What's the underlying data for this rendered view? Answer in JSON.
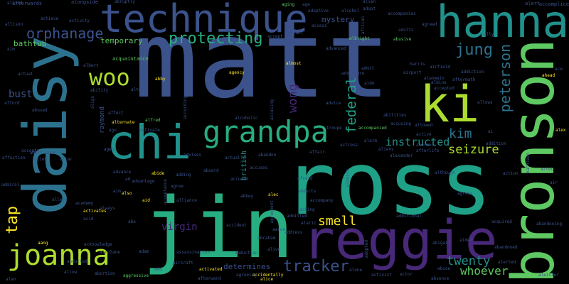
{
  "cloud": {
    "background": "#000000",
    "palette": [
      "#3b528b",
      "#21918c",
      "#5ec962",
      "#fde725",
      "#440154",
      "#2c728e",
      "#27ad81",
      "#482878",
      "#addc30",
      "#1fa188"
    ],
    "words": [
      {
        "text": "matt",
        "color": "#3b528b",
        "orient": "h"
      },
      {
        "text": "ross",
        "color": "#1fa188",
        "orient": "h"
      },
      {
        "text": "daisy",
        "color": "#2c728e",
        "orient": "v"
      },
      {
        "text": "jin",
        "color": "#27ad81",
        "orient": "h"
      },
      {
        "text": "bronson",
        "color": "#5ec962",
        "orient": "v"
      },
      {
        "text": "reggie",
        "color": "#482878",
        "orient": "h"
      },
      {
        "text": "hanna",
        "color": "#21918c",
        "orient": "h"
      },
      {
        "text": "technique",
        "color": "#3b528b",
        "orient": "h"
      },
      {
        "text": "ki",
        "color": "#addc30",
        "orient": "h"
      },
      {
        "text": "chi",
        "color": "#21918c",
        "orient": "h"
      },
      {
        "text": "grandpa",
        "color": "#27ad81",
        "orient": "h"
      },
      {
        "text": "joanna",
        "color": "#addc30",
        "orient": "h"
      },
      {
        "text": "protecting",
        "color": "#27ad81",
        "orient": "h"
      },
      {
        "text": "woo",
        "color": "#addc30",
        "orient": "h"
      },
      {
        "text": "orphanage",
        "color": "#3b528b",
        "orient": "h"
      },
      {
        "text": "jung",
        "color": "#2c728e",
        "orient": "h"
      },
      {
        "text": "peterson",
        "color": "#2c728e",
        "orient": "v"
      },
      {
        "text": "federal",
        "color": "#1fa188",
        "orient": "v"
      },
      {
        "text": "wong",
        "color": "#482878",
        "orient": "v"
      },
      {
        "text": "kim",
        "color": "#2c728e",
        "orient": "h"
      },
      {
        "text": "seizure",
        "color": "#addc30",
        "orient": "h"
      },
      {
        "text": "instructed",
        "color": "#21918c",
        "orient": "h"
      },
      {
        "text": "twenty",
        "color": "#21918c",
        "orient": "h"
      },
      {
        "text": "whoever",
        "color": "#5ec962",
        "orient": "h"
      },
      {
        "text": "tracker",
        "color": "#3b528b",
        "orient": "h"
      },
      {
        "text": "smell",
        "color": "#fde725",
        "orient": "h"
      },
      {
        "text": "virgin",
        "color": "#482878",
        "orient": "h"
      },
      {
        "text": "tap",
        "color": "#fde725",
        "orient": "v"
      },
      {
        "text": "bust",
        "color": "#3b528b",
        "orient": "h"
      },
      {
        "text": "bathtub",
        "color": "#5ec962",
        "orient": "h"
      },
      {
        "text": "mystery",
        "color": "#3b528b",
        "orient": "h"
      },
      {
        "text": "temporary",
        "color": "#5ec962",
        "orient": "h"
      },
      {
        "text": "determines",
        "color": "#3b528b",
        "orient": "h"
      },
      {
        "text": "british",
        "color": "#21918c",
        "orient": "v"
      },
      {
        "text": "raymond",
        "color": "#3b528b",
        "orient": "v"
      },
      {
        "text": "acquaintance",
        "color": "#5ec962",
        "orient": "h"
      },
      {
        "text": "afterwards",
        "color": "#3b528b",
        "orient": "h"
      },
      {
        "text": "alongside",
        "color": "#3b528b",
        "orient": "h"
      },
      {
        "text": "abruptly",
        "color": "#3b528b",
        "orient": "h"
      },
      {
        "text": "aging",
        "color": "#5ec962",
        "orient": "h"
      },
      {
        "text": "alert",
        "color": "#3b528b",
        "orient": "h"
      },
      {
        "text": "accomplice",
        "color": "#3b528b",
        "orient": "h"
      },
      {
        "text": "adoptive",
        "color": "#3b528b",
        "orient": "h"
      },
      {
        "text": "alcohol",
        "color": "#3b528b",
        "orient": "h"
      },
      {
        "text": "accompanies",
        "color": "#3b528b",
        "orient": "h"
      },
      {
        "text": "agreed",
        "color": "#3b528b",
        "orient": "h"
      },
      {
        "text": "ally",
        "color": "#3b528b",
        "orient": "h"
      },
      {
        "text": "allison",
        "color": "#3b528b",
        "orient": "h"
      },
      {
        "text": "achieve",
        "color": "#3b528b",
        "orient": "h"
      },
      {
        "text": "activity",
        "color": "#3b528b",
        "orient": "h"
      },
      {
        "text": "access",
        "color": "#3b528b",
        "orient": "h"
      },
      {
        "text": "along",
        "color": "#3b528b",
        "orient": "h"
      },
      {
        "text": "accept",
        "color": "#3b528b",
        "orient": "h"
      },
      {
        "text": "albright",
        "color": "#5ec962",
        "orient": "h"
      },
      {
        "text": "abusive",
        "color": "#5ec962",
        "orient": "h"
      },
      {
        "text": "adults",
        "color": "#3b528b",
        "orient": "h"
      },
      {
        "text": "advanced",
        "color": "#3b528b",
        "orient": "h"
      },
      {
        "text": "almost",
        "color": "#fde725",
        "orient": "h"
      },
      {
        "text": "admit",
        "color": "#3b528b",
        "orient": "h"
      },
      {
        "text": "harris",
        "color": "#3b528b",
        "orient": "h"
      },
      {
        "text": "airfield",
        "color": "#3b528b",
        "orient": "h"
      },
      {
        "text": "airport",
        "color": "#3b528b",
        "orient": "h"
      },
      {
        "text": "adventure",
        "color": "#3b528b",
        "orient": "h"
      },
      {
        "text": "aide",
        "color": "#3b528b",
        "orient": "h"
      },
      {
        "text": "aftermath",
        "color": "#3b528b",
        "orient": "h"
      },
      {
        "text": "ahead",
        "color": "#fde725",
        "orient": "h"
      },
      {
        "text": "accepted",
        "color": "#3b528b",
        "orient": "h"
      },
      {
        "text": "allows",
        "color": "#3b528b",
        "orient": "h"
      },
      {
        "text": "actual",
        "color": "#3b528b",
        "orient": "h"
      },
      {
        "text": "ability",
        "color": "#3b528b",
        "orient": "h"
      },
      {
        "text": "alter",
        "color": "#3b528b",
        "orient": "h"
      },
      {
        "text": "abby",
        "color": "#fde725",
        "orient": "h"
      },
      {
        "text": "agency",
        "color": "#fde725",
        "orient": "h"
      },
      {
        "text": "advice",
        "color": "#3b528b",
        "orient": "h"
      },
      {
        "text": "accompanied",
        "color": "#5ec962",
        "orient": "h"
      },
      {
        "text": "abused",
        "color": "#3b528b",
        "orient": "h"
      },
      {
        "text": "afford",
        "color": "#3b528b",
        "orient": "h"
      },
      {
        "text": "affect",
        "color": "#3b528b",
        "orient": "h"
      },
      {
        "text": "alternate",
        "color": "#fde725",
        "orient": "h"
      },
      {
        "text": "alfred",
        "color": "#5ec962",
        "orient": "h"
      },
      {
        "text": "activate",
        "color": "#3b528b",
        "orient": "h"
      },
      {
        "text": "ago",
        "color": "#3b528b",
        "orient": "h"
      },
      {
        "text": "accepts",
        "color": "#3b528b",
        "orient": "h"
      },
      {
        "text": "agent",
        "color": "#3b528b",
        "orient": "h"
      },
      {
        "text": "adult aged",
        "color": "#3b528b",
        "orient": "h"
      },
      {
        "text": "alien",
        "color": "#3b528b",
        "orient": "h"
      },
      {
        "text": "altar",
        "color": "#3b528b",
        "orient": "h"
      },
      {
        "text": "advises",
        "color": "#3b528b",
        "orient": "h"
      },
      {
        "text": "actually",
        "color": "#3b528b",
        "orient": "h"
      },
      {
        "text": "abandon",
        "color": "#3b528b",
        "orient": "h"
      },
      {
        "text": "accuses",
        "color": "#3b528b",
        "orient": "h"
      },
      {
        "text": "abilities",
        "color": "#3b528b",
        "orient": "h"
      },
      {
        "text": "alarm",
        "color": "#3b528b",
        "orient": "h"
      },
      {
        "text": "affair",
        "color": "#3b528b",
        "orient": "h"
      },
      {
        "text": "actress",
        "color": "#3b528b",
        "orient": "h"
      },
      {
        "text": "active",
        "color": "#3b528b",
        "orient": "h"
      },
      {
        "text": "alexander",
        "color": "#3b528b",
        "orient": "h"
      },
      {
        "text": "afterlife",
        "color": "#3b528b",
        "orient": "h"
      },
      {
        "text": "addition",
        "color": "#3b528b",
        "orient": "h"
      },
      {
        "text": "alex",
        "color": "#fde725",
        "orient": "h"
      },
      {
        "text": "action",
        "color": "#3b528b",
        "orient": "h"
      },
      {
        "text": "alarmed",
        "color": "#3b528b",
        "orient": "h"
      },
      {
        "text": "although",
        "color": "#3b528b",
        "orient": "h"
      },
      {
        "text": "air",
        "color": "#3b528b",
        "orient": "h"
      },
      {
        "text": "agrees",
        "color": "#3b528b",
        "orient": "h"
      },
      {
        "text": "affection",
        "color": "#3b528b",
        "orient": "h"
      },
      {
        "text": "advance",
        "color": "#3b528b",
        "orient": "h"
      },
      {
        "text": "abide",
        "color": "#fde725",
        "orient": "h"
      },
      {
        "text": "adding",
        "color": "#3b528b",
        "orient": "h"
      },
      {
        "text": "aboard",
        "color": "#3b528b",
        "orient": "h"
      },
      {
        "text": "advantage",
        "color": "#3b528b",
        "orient": "h"
      },
      {
        "text": "accused",
        "color": "#3b528b",
        "orient": "h"
      },
      {
        "text": "abbey",
        "color": "#3b528b",
        "orient": "h"
      },
      {
        "text": "alec",
        "color": "#fde725",
        "orient": "h"
      },
      {
        "text": "afraid",
        "color": "#3b528b",
        "orient": "h"
      },
      {
        "text": "admiral",
        "color": "#3b528b",
        "orient": "h"
      },
      {
        "text": "ad",
        "color": "#3b528b",
        "orient": "h"
      },
      {
        "text": "agree",
        "color": "#3b528b",
        "orient": "h"
      },
      {
        "text": "alliance",
        "color": "#3b528b",
        "orient": "h"
      },
      {
        "text": "accompany",
        "color": "#3b528b",
        "orient": "h"
      },
      {
        "text": "alley",
        "color": "#3b528b",
        "orient": "h"
      },
      {
        "text": "activates",
        "color": "#fde725",
        "orient": "h"
      },
      {
        "text": "also",
        "color": "#fde725",
        "orient": "h"
      },
      {
        "text": "aid",
        "color": "#fde725",
        "orient": "h"
      },
      {
        "text": "abducts",
        "color": "#3b528b",
        "orient": "h"
      },
      {
        "text": "academy",
        "color": "#3b528b",
        "orient": "h"
      },
      {
        "text": "acid",
        "color": "#3b528b",
        "orient": "h"
      },
      {
        "text": "always",
        "color": "#3b528b",
        "orient": "h"
      },
      {
        "text": "acting",
        "color": "#3b528b",
        "orient": "h"
      },
      {
        "text": "additional",
        "color": "#3b528b",
        "orient": "h"
      },
      {
        "text": "admitted",
        "color": "#3b528b",
        "orient": "h"
      },
      {
        "text": "abandoning",
        "color": "#3b528b",
        "orient": "h"
      },
      {
        "text": "acquired",
        "color": "#3b528b",
        "orient": "h"
      },
      {
        "text": "abe",
        "color": "#3b528b",
        "orient": "h"
      },
      {
        "text": "address",
        "color": "#3b528b",
        "orient": "h"
      },
      {
        "text": "abigail",
        "color": "#3b528b",
        "orient": "h"
      },
      {
        "text": "aided",
        "color": "#3b528b",
        "orient": "h"
      },
      {
        "text": "abraham",
        "color": "#3b528b",
        "orient": "h"
      },
      {
        "text": "abandoned",
        "color": "#3b528b",
        "orient": "h"
      },
      {
        "text": "aang",
        "color": "#fde725",
        "orient": "h"
      },
      {
        "text": "acknowledge",
        "color": "#3b528b",
        "orient": "h"
      },
      {
        "text": "airplane",
        "color": "#3b528b",
        "orient": "h"
      },
      {
        "text": "abducted",
        "color": "#3b528b",
        "orient": "h"
      },
      {
        "text": "adam",
        "color": "#3b528b",
        "orient": "h"
      },
      {
        "text": "assassination",
        "color": "#3b528b",
        "orient": "h"
      },
      {
        "text": "abduction",
        "color": "#3b528b",
        "orient": "h"
      },
      {
        "text": "alive",
        "color": "#3b528b",
        "orient": "h"
      },
      {
        "text": "aircraft",
        "color": "#3b528b",
        "orient": "h"
      },
      {
        "text": "accidentally",
        "color": "#fde725",
        "orient": "h"
      },
      {
        "text": "activist",
        "color": "#3b528b",
        "orient": "h"
      },
      {
        "text": "actor",
        "color": "#3b528b",
        "orient": "h"
      },
      {
        "text": "abuse",
        "color": "#3b528b",
        "orient": "h"
      },
      {
        "text": "alerted",
        "color": "#3b528b",
        "orient": "h"
      },
      {
        "text": "absence",
        "color": "#3b528b",
        "orient": "h"
      },
      {
        "text": "abortion",
        "color": "#3b528b",
        "orient": "h"
      },
      {
        "text": "aggressive",
        "color": "#5ec962",
        "orient": "h"
      },
      {
        "text": "add",
        "color": "#3b528b",
        "orient": "h"
      },
      {
        "text": "activated",
        "color": "#fde725",
        "orient": "h"
      },
      {
        "text": "agreeing",
        "color": "#3b528b",
        "orient": "h"
      },
      {
        "text": "alone",
        "color": "#3b528b",
        "orient": "h"
      },
      {
        "text": "allow",
        "color": "#3b528b",
        "orient": "h"
      },
      {
        "text": "alan",
        "color": "#3b528b",
        "orient": "h"
      },
      {
        "text": "afterward",
        "color": "#3b528b",
        "orient": "h"
      },
      {
        "text": "alice",
        "color": "#fde725",
        "orient": "h"
      },
      {
        "text": "allied",
        "color": "#3b528b",
        "orient": "h"
      },
      {
        "text": "accident",
        "color": "#3b528b",
        "orient": "h"
      },
      {
        "text": "aim",
        "color": "#3b528b",
        "orient": "h"
      },
      {
        "text": "african",
        "color": "#3b528b",
        "orient": "v"
      },
      {
        "text": "account",
        "color": "#3b528b",
        "orient": "h"
      },
      {
        "text": "age",
        "color": "#3b528b",
        "orient": "h"
      },
      {
        "text": "alien",
        "color": "#3b528b",
        "orient": "h"
      },
      {
        "text": "adopt",
        "color": "#3b528b",
        "orient": "h"
      },
      {
        "text": "ace",
        "color": "#3b528b",
        "orient": "h"
      },
      {
        "text": "align",
        "color": "#3b528b",
        "orient": "v"
      },
      {
        "text": "alcoholic",
        "color": "#3b528b",
        "orient": "h"
      },
      {
        "text": "according",
        "color": "#3b528b",
        "orient": "v"
      },
      {
        "text": "accusing",
        "color": "#3b528b",
        "orient": "v"
      },
      {
        "text": "accusing",
        "color": "#3b528b",
        "orient": "h"
      },
      {
        "text": "albert",
        "color": "#3b528b",
        "orient": "h"
      },
      {
        "text": "allowed",
        "color": "#3b528b",
        "orient": "h"
      },
      {
        "text": "ai",
        "color": "#3b528b",
        "orient": "h"
      },
      {
        "text": "aztec",
        "color": "#3b528b",
        "orient": "h"
      },
      {
        "text": "kathleen",
        "color": "#3b528b",
        "orient": "v"
      },
      {
        "text": "aleister",
        "color": "#3b528b",
        "orient": "h"
      },
      {
        "text": "acceptance",
        "color": "#3b528b",
        "orient": "v"
      },
      {
        "text": "aaron",
        "color": "#3b528b",
        "orient": "h"
      },
      {
        "text": "agreement",
        "color": "#3b528b",
        "orient": "v"
      },
      {
        "text": "acquire",
        "color": "#3b528b",
        "orient": "v"
      },
      {
        "text": "adopted",
        "color": "#3b528b",
        "orient": "v"
      },
      {
        "text": "aim",
        "color": "#3b528b",
        "orient": "h"
      },
      {
        "text": "alaric",
        "color": "#3b528b",
        "orient": "h"
      },
      {
        "text": "troupe",
        "color": "#3b528b",
        "orient": "h"
      },
      {
        "text": "aliens",
        "color": "#3b528b",
        "orient": "h"
      },
      {
        "text": "alanmain",
        "color": "#3b528b",
        "orient": "h"
      },
      {
        "text": "albino",
        "color": "#3b528b",
        "orient": "h"
      },
      {
        "text": "addiction",
        "color": "#3b528b",
        "orient": "h"
      }
    ]
  }
}
